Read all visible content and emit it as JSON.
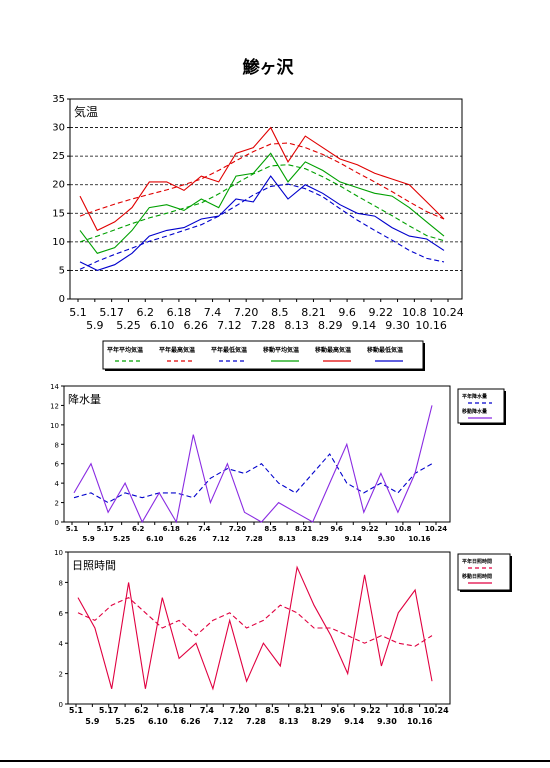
{
  "page": {
    "title": "鯵ヶ沢"
  },
  "chart_data": [
    {
      "type": "line",
      "panel_label": "気温",
      "ylim": [
        0,
        35
      ],
      "yticks": [
        0,
        5,
        10,
        15,
        20,
        25,
        30,
        35
      ],
      "x_dates": [
        "5.1",
        "5.9",
        "5.17",
        "5.25",
        "6.2",
        "6.10",
        "6.18",
        "6.26",
        "7.4",
        "7.12",
        "7.20",
        "7.28",
        "8.5",
        "8.13",
        "8.21",
        "8.29",
        "9.6",
        "9.14",
        "9.22",
        "9.30",
        "10.8",
        "10.16",
        "10.24"
      ],
      "grid_y": [
        5,
        10,
        15,
        20,
        25,
        30
      ],
      "legend": [
        {
          "name": "平年平均気温",
          "color": "#00a000",
          "dash": true
        },
        {
          "name": "平年最高気温",
          "color": "#e00000",
          "dash": true
        },
        {
          "name": "平年最低気温",
          "color": "#0000cc",
          "dash": true
        },
        {
          "name": "移動平均気温",
          "color": "#00a000",
          "dash": false
        },
        {
          "name": "移動最高気温",
          "color": "#e00000",
          "dash": false
        },
        {
          "name": "移動最低気温",
          "color": "#0000cc",
          "dash": false
        }
      ],
      "series": [
        {
          "key": "norm_max",
          "color": "#e00000",
          "dash": true,
          "values": [
            14.5,
            15.6,
            16.6,
            17.5,
            18.3,
            19.1,
            20.0,
            21.0,
            22.5,
            24.2,
            25.8,
            27.1,
            27.3,
            26.5,
            25.3,
            23.8,
            22.1,
            20.5,
            18.8,
            17.0,
            15.3,
            14.0
          ]
        },
        {
          "key": "norm_avg",
          "color": "#00a000",
          "dash": true,
          "values": [
            10.0,
            11.0,
            12.1,
            13.2,
            14.2,
            15.0,
            15.9,
            16.8,
            18.4,
            20.2,
            21.9,
            23.3,
            23.5,
            22.8,
            21.4,
            19.8,
            18.0,
            16.3,
            14.6,
            12.8,
            11.1,
            10.2
          ]
        },
        {
          "key": "norm_min",
          "color": "#0000cc",
          "dash": true,
          "values": [
            5.2,
            6.6,
            7.8,
            8.9,
            10.1,
            11.0,
            12.0,
            13.0,
            14.5,
            16.3,
            18.2,
            19.7,
            20.1,
            19.3,
            17.9,
            15.8,
            13.8,
            12.0,
            10.3,
            8.5,
            7.1,
            6.5
          ]
        },
        {
          "key": "move_max",
          "color": "#e00000",
          "dash": false,
          "values": [
            18.0,
            12.0,
            13.5,
            16.0,
            20.5,
            20.5,
            19.0,
            21.5,
            20.5,
            25.5,
            26.5,
            30.0,
            24.0,
            28.5,
            26.5,
            24.5,
            23.5,
            22.0,
            21.0,
            20.0,
            17.0,
            14.0
          ]
        },
        {
          "key": "move_avg",
          "color": "#00a000",
          "dash": false,
          "values": [
            12.0,
            8.0,
            9.0,
            12.0,
            16.0,
            16.5,
            15.5,
            17.5,
            16.0,
            21.5,
            22.0,
            25.5,
            20.5,
            24.0,
            22.5,
            20.5,
            19.5,
            18.5,
            18.0,
            16.0,
            13.5,
            11.0
          ]
        },
        {
          "key": "move_min",
          "color": "#0000cc",
          "dash": false,
          "values": [
            6.5,
            5.0,
            6.0,
            8.0,
            11.0,
            12.0,
            12.5,
            14.0,
            14.5,
            17.5,
            17.0,
            21.5,
            17.5,
            20.0,
            18.5,
            16.5,
            15.0,
            14.5,
            12.5,
            11.0,
            10.5,
            8.5
          ]
        }
      ]
    },
    {
      "type": "line",
      "panel_label": "降水量",
      "ylim": [
        0,
        14
      ],
      "yticks": [
        0,
        2,
        4,
        6,
        8,
        10,
        12,
        14
      ],
      "legend": [
        {
          "name": "平年降水量",
          "color": "#0000cc",
          "dash": true
        },
        {
          "name": "移動降水量",
          "color": "#8a2be2",
          "dash": false
        }
      ],
      "series": [
        {
          "key": "norm_precip",
          "color": "#0000cc",
          "dash": true,
          "values": [
            2.5,
            3.0,
            2.0,
            3.0,
            2.5,
            3.0,
            3.0,
            2.5,
            4.5,
            5.5,
            5.0,
            6.0,
            4.0,
            3.0,
            5.0,
            7.0,
            4.0,
            3.0,
            4.0,
            3.0,
            5.0,
            6.0
          ]
        },
        {
          "key": "move_precip",
          "color": "#8a2be2",
          "dash": false,
          "values": [
            3.0,
            6.0,
            1.0,
            4.0,
            0.0,
            3.0,
            0.0,
            9.0,
            2.0,
            6.0,
            1.0,
            0.0,
            2.0,
            1.0,
            0.0,
            4.0,
            8.0,
            1.0,
            5.0,
            1.0,
            5.0,
            12.0
          ]
        }
      ]
    },
    {
      "type": "line",
      "panel_label": "日照時間",
      "ylim": [
        0,
        10
      ],
      "yticks": [
        0,
        2,
        4,
        6,
        8,
        10
      ],
      "legend": [
        {
          "name": "平年日照時間",
          "color": "#e00040",
          "dash": true
        },
        {
          "name": "移動日照時間",
          "color": "#e00040",
          "dash": false
        }
      ],
      "series": [
        {
          "key": "norm_sun",
          "color": "#e00040",
          "dash": true,
          "values": [
            6.0,
            5.5,
            6.5,
            7.0,
            6.0,
            5.0,
            5.5,
            4.5,
            5.5,
            6.0,
            5.0,
            5.5,
            6.5,
            6.0,
            5.0,
            5.0,
            4.5,
            4.0,
            4.5,
            4.0,
            3.8,
            4.5
          ]
        },
        {
          "key": "move_sun",
          "color": "#e00040",
          "dash": false,
          "values": [
            7.0,
            5.0,
            1.0,
            8.0,
            1.0,
            7.0,
            3.0,
            4.0,
            1.0,
            5.5,
            1.5,
            4.0,
            2.5,
            9.0,
            6.5,
            4.5,
            2.0,
            8.5,
            2.5,
            6.0,
            7.5,
            1.5
          ]
        }
      ]
    }
  ]
}
